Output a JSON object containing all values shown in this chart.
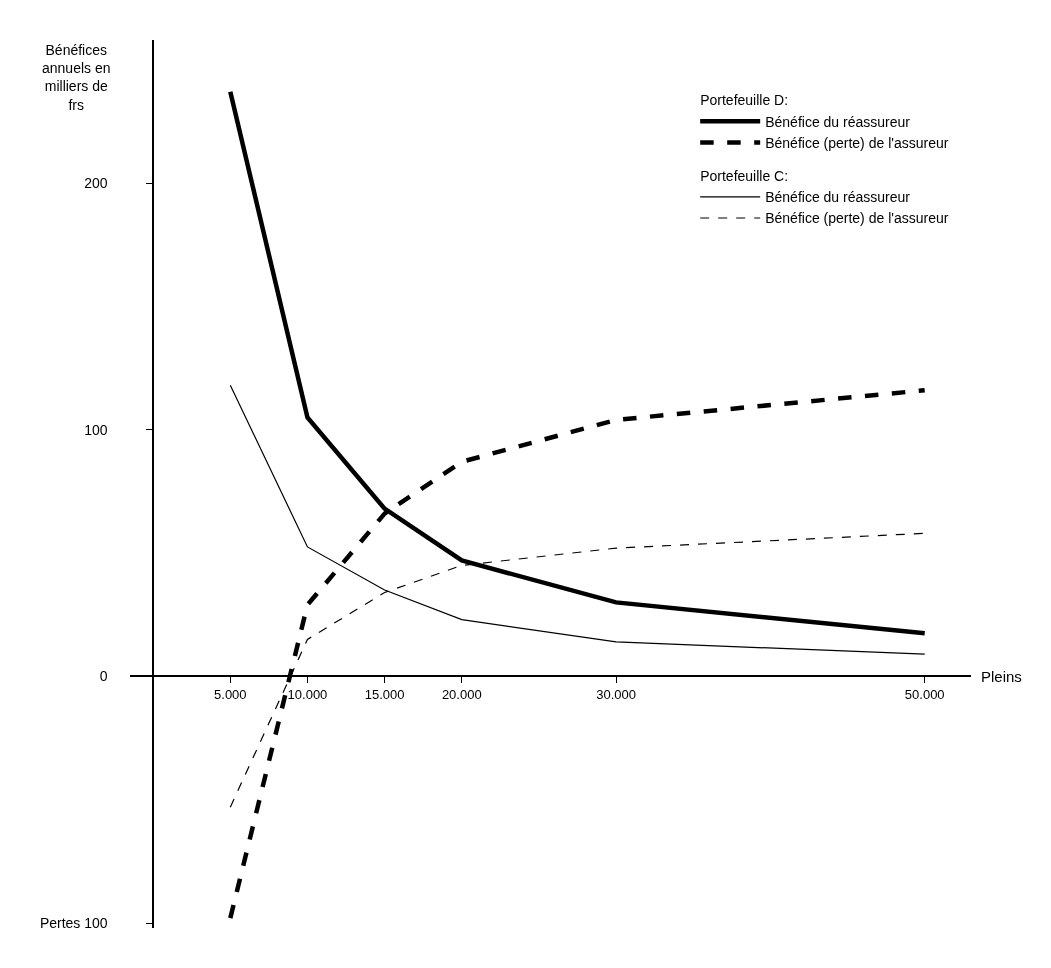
{
  "chart_data": {
    "type": "line",
    "xlabel": "Pleins",
    "ylabel": "Bénéfices annuels en milliers de frs",
    "x": [
      5000,
      10000,
      15000,
      20000,
      30000,
      50000
    ],
    "series": [
      {
        "name": "Bénéfice du réassureur",
        "color": "#000000",
        "line_style": "solid",
        "values": [
          237,
          105,
          68,
          47,
          30,
          17.5
        ]
      },
      {
        "name": "Bénéfice (perte) de l'assureur",
        "color": "#000000",
        "line_style": "dashed",
        "values": [
          -98,
          29,
          66,
          87,
          104,
          116
        ]
      },
      {
        "name": "Bénéfice du réassureur",
        "color": "#000000",
        "line_style": "solid",
        "values": [
          118,
          52.5,
          35,
          23,
          14,
          9
        ]
      },
      {
        "name": "Bénéfice (perte) de l'assureur",
        "color": "#000000",
        "line_style": "dashed",
        "values": [
          -53,
          15,
          34,
          45,
          52,
          58
        ]
      }
    ],
    "annotations": [
      "Portefeuille D:",
      "Portefeuille C:"
    ],
    "xlim": [
      -1500,
      53000
    ],
    "ylim": [
      -102,
      258
    ],
    "xticks": [
      {
        "value": 5000,
        "label": "5.000"
      },
      {
        "value": 10000,
        "label": "10.000"
      },
      {
        "value": 15000,
        "label": "15.000"
      },
      {
        "value": 20000,
        "label": "20.000"
      },
      {
        "value": 30000,
        "label": "30.000"
      },
      {
        "value": 50000,
        "label": "50.000"
      }
    ],
    "yticks": [
      {
        "value": -100,
        "label": "Pertes 100"
      },
      0,
      100,
      200
    ],
    "legend": "top right",
    "marker": "none"
  }
}
